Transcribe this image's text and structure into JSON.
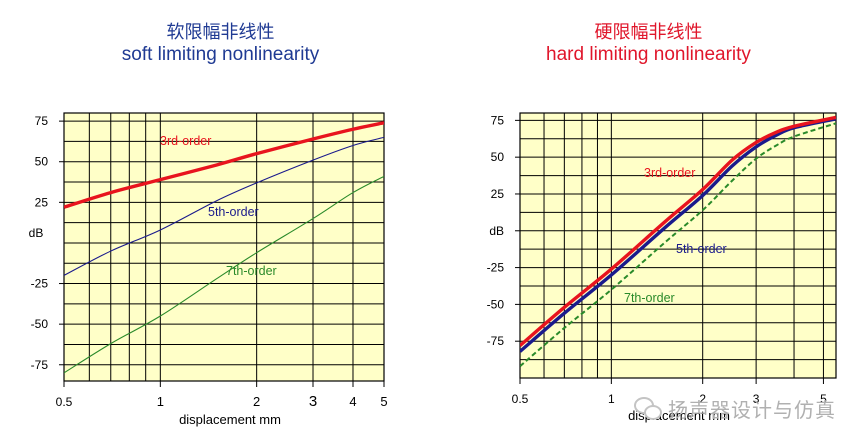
{
  "panels": [
    {
      "title_cn": "软限幅非线性",
      "title_en": "soft limiting nonlinearity"
    },
    {
      "title_cn": "硬限幅非线性",
      "title_en": "hard limiting nonlinearity"
    }
  ],
  "watermark": {
    "icon": "wechat-icon",
    "text": "扬声器设计与仿真"
  },
  "colors": {
    "plot_background": "#ffffc8",
    "red_series": "#e8141e",
    "blue_series": "#1a1a8c",
    "green_series": "#2a8a2a",
    "left_title": "#1f3a93",
    "right_title": "#e0162b"
  },
  "chart_data": [
    {
      "type": "line",
      "title": "soft limiting nonlinearity",
      "xlabel": "displacement    mm",
      "ylabel": "dB",
      "x_scale": "log",
      "xlim": [
        0.5,
        5
      ],
      "ylim": [
        -85,
        80
      ],
      "x_ticks": [
        "0.5",
        "1",
        "2",
        "3",
        "4",
        "5"
      ],
      "y_ticks": [
        "75",
        "50",
        "25",
        "",
        "-25",
        "-50",
        "-75"
      ],
      "y_tick_values": [
        75,
        50,
        25,
        0,
        -25,
        -50,
        -75
      ],
      "grid": true,
      "series": [
        {
          "name": "3rd-order",
          "color": "#e8141e",
          "style": "solid",
          "width": "thick",
          "x": [
            0.5,
            0.7,
            1,
            1.5,
            2,
            3,
            4,
            5
          ],
          "y": [
            22,
            31,
            39,
            48,
            55,
            64,
            70,
            74
          ]
        },
        {
          "name": "5th-order",
          "color": "#1a1a8c",
          "style": "solid",
          "width": "thin",
          "x": [
            0.5,
            0.7,
            1,
            1.5,
            2,
            3,
            4,
            5
          ],
          "y": [
            -20,
            -5,
            8,
            26,
            37,
            51,
            60,
            65
          ]
        },
        {
          "name": "7th-order",
          "color": "#2a8a2a",
          "style": "solid",
          "width": "thin",
          "x": [
            0.5,
            0.7,
            1,
            1.5,
            2,
            3,
            4,
            5
          ],
          "y": [
            -80,
            -62,
            -45,
            -22,
            -6,
            15,
            31,
            41
          ]
        }
      ],
      "annotations": [
        "3rd-order",
        "5th-order",
        "7th-order"
      ]
    },
    {
      "type": "line",
      "title": "hard limiting nonlinearity",
      "xlabel": "displacement    mm",
      "ylabel": "dB",
      "x_scale": "log",
      "xlim": [
        0.5,
        5.5
      ],
      "ylim": [
        -100,
        80
      ],
      "x_ticks": [
        "0.5",
        "1",
        "2",
        "3",
        "5"
      ],
      "y_ticks": [
        "75",
        "50",
        "25",
        "dB",
        "-25",
        "-50",
        "-75"
      ],
      "y_tick_values": [
        75,
        50,
        25,
        0,
        -25,
        -50,
        -75
      ],
      "grid": true,
      "series": [
        {
          "name": "3rd-order",
          "color": "#e8141e",
          "style": "solid",
          "width": "thick",
          "x": [
            0.5,
            0.7,
            1,
            1.5,
            2,
            2.5,
            3,
            3.5,
            4,
            5.5
          ],
          "y": [
            -78,
            -52,
            -26,
            6,
            28,
            48,
            60,
            67,
            71,
            77
          ]
        },
        {
          "name": "5th-order",
          "color": "#1a1a8c",
          "style": "solid",
          "width": "thick",
          "x": [
            0.5,
            0.7,
            1,
            1.5,
            2,
            2.5,
            3,
            3.5,
            4,
            5.5
          ],
          "y": [
            -82,
            -56,
            -30,
            2,
            24,
            44,
            57,
            65,
            70,
            76
          ]
        },
        {
          "name": "7th-order",
          "color": "#2a8a2a",
          "style": "dashed",
          "width": "medium",
          "x": [
            0.5,
            0.7,
            1,
            1.5,
            2,
            2.5,
            3,
            3.5,
            4,
            5.5
          ],
          "y": [
            -92,
            -66,
            -40,
            -8,
            14,
            34,
            49,
            58,
            64,
            73
          ]
        }
      ],
      "annotations": [
        "3rd-order",
        "5th-order",
        "7th-order"
      ]
    }
  ]
}
